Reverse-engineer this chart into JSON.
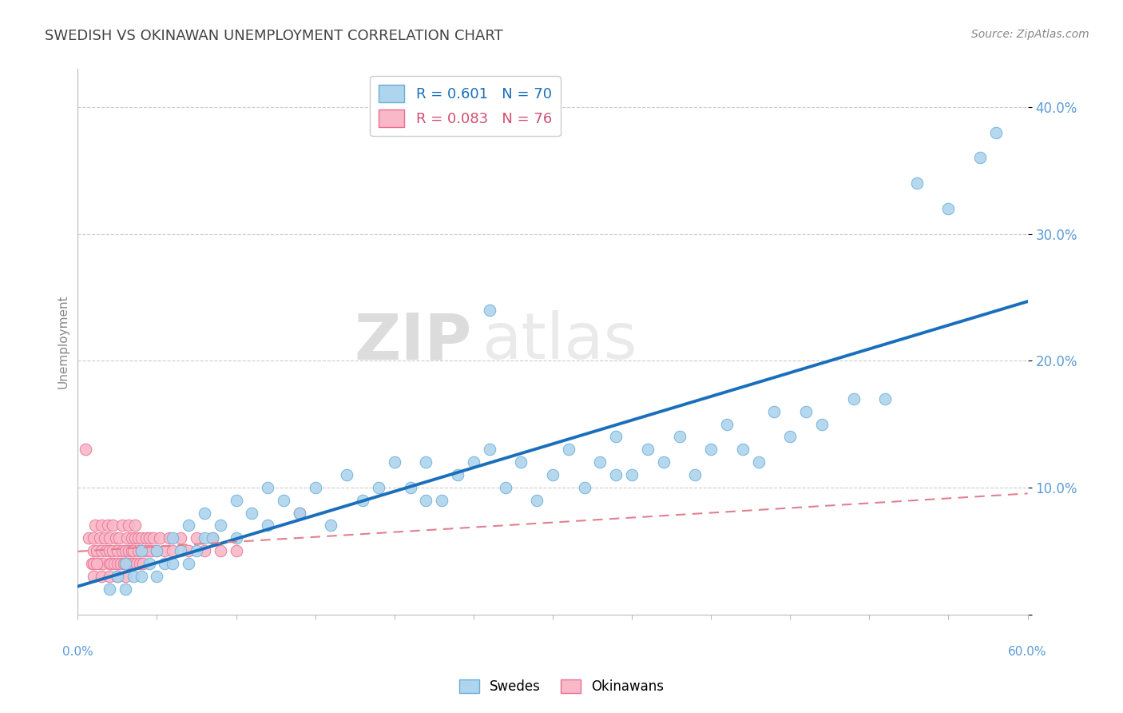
{
  "title": "SWEDISH VS OKINAWAN UNEMPLOYMENT CORRELATION CHART",
  "source": "Source: ZipAtlas.com",
  "ylabel": "Unemployment",
  "yticks": [
    0.0,
    0.1,
    0.2,
    0.3,
    0.4
  ],
  "ytick_labels": [
    "",
    "10.0%",
    "20.0%",
    "30.0%",
    "40.0%"
  ],
  "xlim": [
    0.0,
    0.6
  ],
  "ylim": [
    0.0,
    0.43
  ],
  "swedish_R": 0.601,
  "swedish_N": 70,
  "okinawan_R": 0.083,
  "okinawan_N": 76,
  "blue_scatter_color": "#aed4ee",
  "blue_scatter_edge": "#6aafd6",
  "blue_line_color": "#1a6fba",
  "pink_scatter_color": "#f9b8c8",
  "pink_scatter_edge": "#e87090",
  "pink_line_color": "#e08090",
  "legend_label_1": "Swedes",
  "legend_label_2": "Okinawans",
  "background_color": "#ffffff",
  "grid_color": "#cccccc",
  "swedish_x": [
    0.02,
    0.025,
    0.03,
    0.03,
    0.035,
    0.04,
    0.04,
    0.045,
    0.05,
    0.05,
    0.055,
    0.06,
    0.06,
    0.065,
    0.07,
    0.07,
    0.075,
    0.08,
    0.08,
    0.085,
    0.09,
    0.1,
    0.1,
    0.11,
    0.12,
    0.12,
    0.13,
    0.14,
    0.15,
    0.16,
    0.17,
    0.18,
    0.19,
    0.2,
    0.21,
    0.22,
    0.23,
    0.24,
    0.25,
    0.26,
    0.27,
    0.28,
    0.29,
    0.3,
    0.31,
    0.32,
    0.33,
    0.34,
    0.35,
    0.36,
    0.37,
    0.38,
    0.39,
    0.4,
    0.41,
    0.42,
    0.43,
    0.44,
    0.45,
    0.46,
    0.47,
    0.49,
    0.51,
    0.53,
    0.55,
    0.57,
    0.58,
    0.34,
    0.26,
    0.22
  ],
  "swedish_y": [
    0.02,
    0.03,
    0.02,
    0.04,
    0.03,
    0.03,
    0.05,
    0.04,
    0.03,
    0.05,
    0.04,
    0.04,
    0.06,
    0.05,
    0.04,
    0.07,
    0.05,
    0.06,
    0.08,
    0.06,
    0.07,
    0.06,
    0.09,
    0.08,
    0.07,
    0.1,
    0.09,
    0.08,
    0.1,
    0.07,
    0.11,
    0.09,
    0.1,
    0.12,
    0.1,
    0.12,
    0.09,
    0.11,
    0.12,
    0.13,
    0.1,
    0.12,
    0.09,
    0.11,
    0.13,
    0.1,
    0.12,
    0.14,
    0.11,
    0.13,
    0.12,
    0.14,
    0.11,
    0.13,
    0.15,
    0.13,
    0.12,
    0.16,
    0.14,
    0.16,
    0.15,
    0.17,
    0.17,
    0.34,
    0.32,
    0.36,
    0.38,
    0.11,
    0.24,
    0.09
  ],
  "okinawan_x": [
    0.005,
    0.007,
    0.009,
    0.01,
    0.01,
    0.01,
    0.01,
    0.011,
    0.012,
    0.013,
    0.014,
    0.015,
    0.015,
    0.015,
    0.016,
    0.017,
    0.018,
    0.019,
    0.02,
    0.02,
    0.02,
    0.02,
    0.021,
    0.022,
    0.022,
    0.023,
    0.024,
    0.025,
    0.025,
    0.025,
    0.026,
    0.027,
    0.028,
    0.028,
    0.029,
    0.03,
    0.03,
    0.03,
    0.031,
    0.031,
    0.032,
    0.032,
    0.033,
    0.034,
    0.034,
    0.035,
    0.035,
    0.036,
    0.036,
    0.037,
    0.038,
    0.038,
    0.039,
    0.04,
    0.04,
    0.041,
    0.042,
    0.043,
    0.044,
    0.045,
    0.046,
    0.048,
    0.05,
    0.052,
    0.055,
    0.058,
    0.06,
    0.065,
    0.07,
    0.075,
    0.08,
    0.085,
    0.09,
    0.1,
    0.012,
    0.14
  ],
  "okinawan_y": [
    0.13,
    0.06,
    0.04,
    0.03,
    0.04,
    0.05,
    0.06,
    0.07,
    0.05,
    0.04,
    0.06,
    0.03,
    0.05,
    0.07,
    0.04,
    0.06,
    0.05,
    0.07,
    0.03,
    0.04,
    0.05,
    0.06,
    0.04,
    0.05,
    0.07,
    0.04,
    0.06,
    0.03,
    0.04,
    0.05,
    0.06,
    0.04,
    0.05,
    0.07,
    0.04,
    0.03,
    0.04,
    0.05,
    0.06,
    0.04,
    0.05,
    0.07,
    0.04,
    0.05,
    0.06,
    0.04,
    0.05,
    0.06,
    0.07,
    0.04,
    0.05,
    0.06,
    0.04,
    0.05,
    0.06,
    0.04,
    0.05,
    0.06,
    0.05,
    0.06,
    0.05,
    0.06,
    0.05,
    0.06,
    0.05,
    0.06,
    0.05,
    0.06,
    0.05,
    0.06,
    0.05,
    0.06,
    0.05,
    0.05,
    0.04,
    0.08
  ],
  "watermark_zip_color": "#c8c8c8",
  "watermark_atlas_color": "#d8d8d8",
  "title_color": "#444444",
  "source_color": "#888888",
  "ylabel_color": "#888888",
  "tick_color": "#5b9bd5"
}
